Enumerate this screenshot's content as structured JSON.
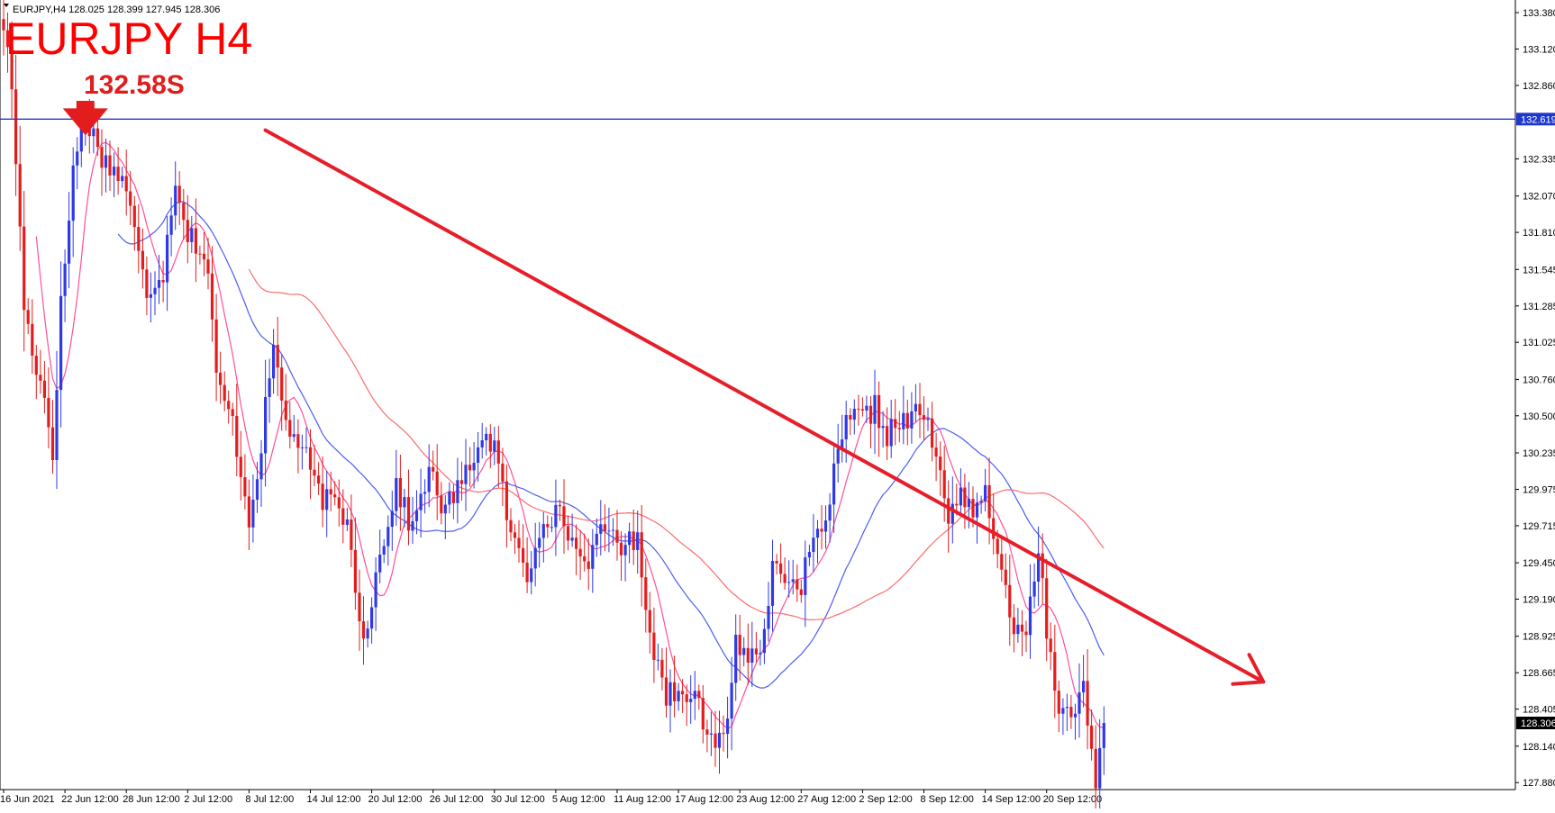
{
  "header": {
    "summary": "EURJPY,H4  128.025 128.399 127.945 128.306",
    "title": "EURJPY H4",
    "annotation": "132.58S"
  },
  "colors": {
    "bull": "#2f39e6",
    "bear": "#e31d1d",
    "sma_fast": "#ff4f9b",
    "sma_mid": "#4d5df0",
    "sma_slow": "#ff6b6b",
    "trend": "#e61e2a",
    "hline": "#2037cc"
  },
  "chart_data": {
    "type": "candlestick",
    "symbol": "EURJPY",
    "timeframe": "H4",
    "ylim": [
      127.83,
      133.47
    ],
    "yticks": [
      133.38,
      133.12,
      132.86,
      132.335,
      132.07,
      131.81,
      131.545,
      131.285,
      131.025,
      130.76,
      130.5,
      130.235,
      129.975,
      129.715,
      129.45,
      129.19,
      128.925,
      128.665,
      128.405,
      128.14,
      127.88
    ],
    "ytick_labels": [
      "133.380",
      "133.120",
      "132.860",
      "132.335",
      "132.070",
      "131.810",
      "131.545",
      "131.285",
      "131.025",
      "130.760",
      "130.500",
      "130.235",
      "129.975",
      "129.715",
      "129.450",
      "129.190",
      "128.925",
      "128.665",
      "128.405",
      "128.140",
      "127.880"
    ],
    "xticks": [
      {
        "label": "16 Jun 2021",
        "index": 0
      },
      {
        "label": "22 Jun 12:00",
        "index": 15
      },
      {
        "label": "28 Jun 12:00",
        "index": 30
      },
      {
        "label": "2 Jul 12:00",
        "index": 45
      },
      {
        "label": "8 Jul 12:00",
        "index": 60
      },
      {
        "label": "14 Jul 12:00",
        "index": 75
      },
      {
        "label": "20 Jul 12:00",
        "index": 90
      },
      {
        "label": "26 Jul 12:00",
        "index": 105
      },
      {
        "label": "30 Jul 12:00",
        "index": 120
      },
      {
        "label": "5 Aug 12:00",
        "index": 135
      },
      {
        "label": "11 Aug 12:00",
        "index": 150
      },
      {
        "label": "17 Aug 12:00",
        "index": 165
      },
      {
        "label": "23 Aug 12:00",
        "index": 180
      },
      {
        "label": "27 Aug 12:00",
        "index": 195
      },
      {
        "label": "2 Sep 12:00",
        "index": 210
      },
      {
        "label": "8 Sep 12:00",
        "index": 225
      },
      {
        "label": "14 Sep 12:00",
        "index": 240
      },
      {
        "label": "20 Sep 12:00",
        "index": 255
      }
    ],
    "current_price": 128.306,
    "current_price_label": "128.306",
    "horizontal_line": {
      "value": 132.619,
      "label": "132.619"
    },
    "arrow_annotation": {
      "candle_index": 20,
      "price": 132.58
    },
    "trendline": {
      "from": {
        "index": 64,
        "price": 132.54
      },
      "to": {
        "index": 308,
        "price": 128.6
      }
    },
    "anchors": [
      [
        0,
        133.3
      ],
      [
        2,
        132.8
      ],
      [
        5,
        131.3
      ],
      [
        10,
        130.6
      ],
      [
        12,
        130.2
      ],
      [
        14,
        131.3
      ],
      [
        17,
        132.3
      ],
      [
        20,
        132.58
      ],
      [
        25,
        132.35
      ],
      [
        30,
        132.1
      ],
      [
        35,
        131.4
      ],
      [
        39,
        131.5
      ],
      [
        42,
        132.25
      ],
      [
        45,
        131.8
      ],
      [
        50,
        131.55
      ],
      [
        52,
        130.8
      ],
      [
        56,
        130.4
      ],
      [
        60,
        129.8
      ],
      [
        63,
        130.3
      ],
      [
        66,
        130.95
      ],
      [
        69,
        130.5
      ],
      [
        72,
        130.3
      ],
      [
        76,
        130.0
      ],
      [
        80,
        129.9
      ],
      [
        84,
        129.7
      ],
      [
        88,
        128.95
      ],
      [
        92,
        129.45
      ],
      [
        96,
        130.05
      ],
      [
        100,
        129.65
      ],
      [
        104,
        130.15
      ],
      [
        108,
        129.8
      ],
      [
        112,
        130.0
      ],
      [
        116,
        130.35
      ],
      [
        120,
        130.25
      ],
      [
        124,
        129.7
      ],
      [
        128,
        129.3
      ],
      [
        132,
        129.85
      ],
      [
        136,
        129.75
      ],
      [
        140,
        129.55
      ],
      [
        144,
        129.5
      ],
      [
        148,
        129.7
      ],
      [
        152,
        129.6
      ],
      [
        155,
        129.55
      ],
      [
        158,
        129.0
      ],
      [
        162,
        128.5
      ],
      [
        166,
        128.5
      ],
      [
        169,
        128.65
      ],
      [
        172,
        128.1
      ],
      [
        176,
        128.2
      ],
      [
        179,
        128.9
      ],
      [
        182,
        128.75
      ],
      [
        185,
        128.8
      ],
      [
        188,
        129.5
      ],
      [
        191,
        129.35
      ],
      [
        194,
        129.2
      ],
      [
        197,
        129.55
      ],
      [
        200,
        129.6
      ],
      [
        203,
        130.1
      ],
      [
        206,
        130.45
      ],
      [
        210,
        130.45
      ],
      [
        213,
        130.6
      ],
      [
        216,
        130.35
      ],
      [
        219,
        130.4
      ],
      [
        222,
        130.55
      ],
      [
        225,
        130.5
      ],
      [
        228,
        130.15
      ],
      [
        231,
        129.85
      ],
      [
        234,
        129.95
      ],
      [
        237,
        129.7
      ],
      [
        240,
        130.1
      ],
      [
        242,
        129.55
      ],
      [
        245,
        129.2
      ],
      [
        248,
        128.95
      ],
      [
        250,
        129.0
      ],
      [
        253,
        129.55
      ],
      [
        255,
        128.95
      ],
      [
        258,
        128.5
      ],
      [
        261,
        128.3
      ],
      [
        264,
        128.55
      ],
      [
        267,
        127.95
      ],
      [
        269,
        128.306
      ]
    ]
  }
}
